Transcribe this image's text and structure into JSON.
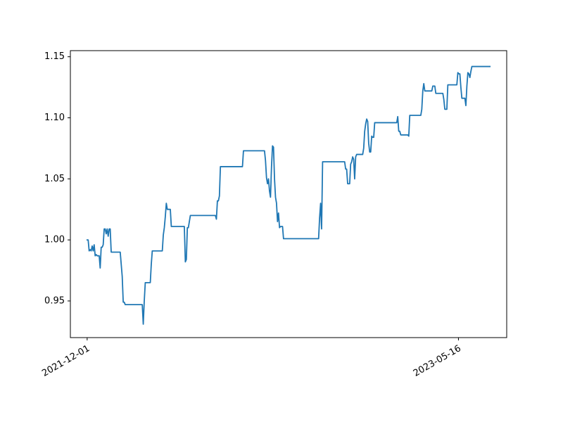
{
  "chart_data": {
    "type": "line",
    "title": "",
    "xlabel": "",
    "ylabel": "",
    "grid": false,
    "legend": "none",
    "x_start": "2021-12-01",
    "x_end": "2023-06-30",
    "xlim": [
      "2021-11-07",
      "2023-07-24"
    ],
    "ylim": [
      0.92,
      1.155
    ],
    "x_ticks": [
      "2021-12-01",
      "2023-05-16"
    ],
    "x_tick_labels": [
      "2021-12-01",
      "2023-05-16"
    ],
    "y_ticks": [
      0.95,
      1.0,
      1.05,
      1.1,
      1.15
    ],
    "y_tick_labels": [
      "0.95",
      "1.00",
      "1.05",
      "1.10",
      "1.15"
    ],
    "color": "#1f77b4",
    "series": [
      {
        "values": [
          1.0,
          1.0,
          0.991,
          0.992,
          0.991,
          0.995,
          0.991,
          0.996,
          0.987,
          0.988,
          0.987,
          0.987,
          0.987,
          0.977,
          0.994,
          0.994,
          0.996,
          1.009,
          1.009,
          1.005,
          1.009,
          1.003,
          1.009,
          1.009,
          0.99,
          0.99,
          0.99,
          0.99,
          0.99,
          0.99,
          0.99,
          0.99,
          0.99,
          0.99,
          0.98,
          0.97,
          0.949,
          0.949,
          0.947,
          0.947,
          0.947,
          0.947,
          0.947,
          0.947,
          0.947,
          0.947,
          0.947,
          0.947,
          0.947,
          0.947,
          0.947,
          0.947,
          0.947,
          0.947,
          0.947,
          0.947,
          0.931,
          0.95,
          0.965,
          0.965,
          0.965,
          0.965,
          0.965,
          0.965,
          0.98,
          0.991,
          0.991,
          0.991,
          0.991,
          0.991,
          0.991,
          0.991,
          0.991,
          0.991,
          0.991,
          0.991,
          1.004,
          1.01,
          1.019,
          1.03,
          1.025,
          1.025,
          1.025,
          1.025,
          1.011,
          1.011,
          1.011,
          1.011,
          1.011,
          1.011,
          1.011,
          1.011,
          1.011,
          1.011,
          1.011,
          1.011,
          1.011,
          1.011,
          0.982,
          0.984,
          1.01,
          1.01,
          1.015,
          1.02,
          1.02,
          1.02,
          1.02,
          1.02,
          1.02,
          1.02,
          1.02,
          1.02,
          1.02,
          1.02,
          1.02,
          1.02,
          1.02,
          1.02,
          1.02,
          1.02,
          1.02,
          1.02,
          1.02,
          1.02,
          1.02,
          1.02,
          1.02,
          1.02,
          1.02,
          1.017,
          1.032,
          1.032,
          1.036,
          1.06,
          1.06,
          1.06,
          1.06,
          1.06,
          1.06,
          1.06,
          1.06,
          1.06,
          1.06,
          1.06,
          1.06,
          1.06,
          1.06,
          1.06,
          1.06,
          1.06,
          1.06,
          1.06,
          1.06,
          1.06,
          1.06,
          1.06,
          1.073,
          1.073,
          1.073,
          1.073,
          1.073,
          1.073,
          1.073,
          1.073,
          1.073,
          1.073,
          1.073,
          1.073,
          1.073,
          1.073,
          1.073,
          1.073,
          1.073,
          1.073,
          1.073,
          1.073,
          1.073,
          1.073,
          1.065,
          1.051,
          1.046,
          1.05,
          1.04,
          1.035,
          1.06,
          1.077,
          1.076,
          1.05,
          1.035,
          1.03,
          1.015,
          1.022,
          1.01,
          1.011,
          1.011,
          1.011,
          1.001,
          1.001,
          1.001,
          1.001,
          1.001,
          1.001,
          1.001,
          1.001,
          1.001,
          1.001,
          1.001,
          1.001,
          1.001,
          1.001,
          1.001,
          1.001,
          1.001,
          1.001,
          1.001,
          1.001,
          1.001,
          1.001,
          1.001,
          1.001,
          1.001,
          1.001,
          1.001,
          1.001,
          1.001,
          1.001,
          1.001,
          1.001,
          1.001,
          1.001,
          1.001,
          1.001,
          1.018,
          1.03,
          1.009,
          1.064,
          1.064,
          1.064,
          1.064,
          1.064,
          1.064,
          1.064,
          1.064,
          1.064,
          1.064,
          1.064,
          1.064,
          1.064,
          1.064,
          1.064,
          1.064,
          1.064,
          1.064,
          1.064,
          1.064,
          1.064,
          1.064,
          1.064,
          1.058,
          1.058,
          1.046,
          1.046,
          1.046,
          1.062,
          1.064,
          1.068,
          1.066,
          1.05,
          1.068,
          1.07,
          1.07,
          1.07,
          1.07,
          1.07,
          1.07,
          1.07,
          1.075,
          1.089,
          1.095,
          1.099,
          1.097,
          1.079,
          1.072,
          1.072,
          1.085,
          1.084,
          1.084,
          1.096,
          1.096,
          1.096,
          1.096,
          1.096,
          1.096,
          1.096,
          1.096,
          1.096,
          1.096,
          1.096,
          1.096,
          1.096,
          1.096,
          1.096,
          1.096,
          1.096,
          1.096,
          1.096,
          1.096,
          1.096,
          1.096,
          1.096,
          1.101,
          1.089,
          1.089,
          1.086,
          1.086,
          1.086,
          1.086,
          1.086,
          1.086,
          1.086,
          1.086,
          1.085,
          1.102,
          1.102,
          1.102,
          1.102,
          1.102,
          1.102,
          1.102,
          1.102,
          1.102,
          1.102,
          1.102,
          1.102,
          1.107,
          1.122,
          1.128,
          1.122,
          1.122,
          1.122,
          1.122,
          1.122,
          1.122,
          1.122,
          1.122,
          1.126,
          1.126,
          1.126,
          1.12,
          1.12,
          1.12,
          1.12,
          1.12,
          1.12,
          1.12,
          1.12,
          1.115,
          1.107,
          1.107,
          1.107,
          1.127,
          1.127,
          1.127,
          1.127,
          1.127,
          1.127,
          1.127,
          1.127,
          1.127,
          1.127,
          1.137,
          1.136,
          1.136,
          1.125,
          1.116,
          1.116,
          1.116,
          1.116,
          1.11,
          1.126,
          1.137,
          1.136,
          1.133,
          1.138,
          1.142,
          1.142,
          1.142,
          1.142,
          1.142,
          1.142,
          1.142,
          1.142,
          1.142,
          1.142,
          1.142,
          1.142,
          1.142,
          1.142,
          1.142,
          1.142,
          1.142,
          1.142,
          1.142
        ]
      }
    ]
  }
}
